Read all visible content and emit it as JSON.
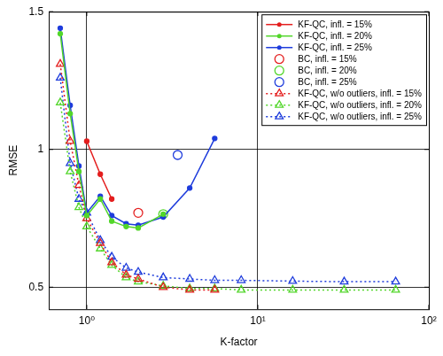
{
  "chart_data": {
    "type": "line",
    "x_label": "K-factor",
    "y_label": "RMSE",
    "log": "x",
    "grid": true,
    "legend": "upper right",
    "xlim": [
      0.6,
      100
    ],
    "ylim": [
      0.42,
      1.5
    ],
    "xticks": [
      {
        "value": 1,
        "label": "10⁰"
      },
      {
        "value": 10,
        "label": "10¹"
      },
      {
        "value": 100,
        "label": "10²"
      }
    ],
    "yticks": [
      0.5,
      1,
      1.5
    ],
    "series": [
      {
        "name": "KF-QC, infl. = 15%",
        "color": "#e41e1e",
        "marker": "dot",
        "line_style": "solid",
        "x": [
          1,
          1.2,
          1.4
        ],
        "values": [
          1.03,
          0.91,
          0.82
        ]
      },
      {
        "name": "KF-QC, infl. = 20%",
        "color": "#52d62a",
        "marker": "dot",
        "line_style": "solid",
        "x": [
          0.7,
          0.8,
          0.9,
          1,
          1.2,
          1.4,
          1.7,
          2,
          2.8
        ],
        "values": [
          1.42,
          1.13,
          0.92,
          0.76,
          0.82,
          0.74,
          0.72,
          0.715,
          0.765
        ]
      },
      {
        "name": "KF-QC, infl. = 25%",
        "color": "#1e3cdc",
        "marker": "dot",
        "line_style": "solid",
        "x": [
          0.7,
          0.8,
          0.9,
          1,
          1.2,
          1.4,
          1.7,
          2,
          2.8,
          4,
          5.6
        ],
        "values": [
          1.44,
          1.16,
          0.94,
          0.77,
          0.83,
          0.76,
          0.73,
          0.725,
          0.755,
          0.86,
          1.04
        ]
      },
      {
        "name": "BC, infl. = 15%",
        "color": "#e41e1e",
        "marker": "circle",
        "line_style": "none",
        "x": [
          2
        ],
        "values": [
          0.77
        ]
      },
      {
        "name": "BC, infl. = 20%",
        "color": "#52d62a",
        "marker": "circle",
        "line_style": "none",
        "x": [
          2.8
        ],
        "values": [
          0.765
        ]
      },
      {
        "name": "BC, infl. = 25%",
        "color": "#1e3cdc",
        "marker": "circle",
        "line_style": "none",
        "x": [
          3.4
        ],
        "values": [
          0.98
        ]
      },
      {
        "name": "KF-QC, w/o outliers, infl. = 15%",
        "color": "#e41e1e",
        "marker": "triangle",
        "line_style": "dotted",
        "x": [
          0.7,
          0.8,
          0.9,
          1,
          1.2,
          1.4,
          1.7,
          2,
          2.8,
          4,
          5.6
        ],
        "values": [
          1.31,
          1.03,
          0.87,
          0.75,
          0.66,
          0.59,
          0.545,
          0.53,
          0.5,
          0.49,
          0.49
        ]
      },
      {
        "name": "KF-QC, w/o outliers, infl. = 20%",
        "color": "#52d62a",
        "marker": "triangle",
        "line_style": "dotted",
        "x": [
          0.7,
          0.8,
          0.9,
          1,
          1.2,
          1.4,
          1.7,
          2,
          2.8,
          4,
          5.6,
          8,
          16,
          32,
          64
        ],
        "values": [
          1.17,
          0.92,
          0.79,
          0.72,
          0.64,
          0.58,
          0.535,
          0.52,
          0.505,
          0.495,
          0.495,
          0.49,
          0.49,
          0.49,
          0.49
        ]
      },
      {
        "name": "KF-QC, w/o outliers, infl. = 25%",
        "color": "#1e3cdc",
        "marker": "triangle",
        "line_style": "dotted",
        "x": [
          0.7,
          0.8,
          0.9,
          1,
          1.2,
          1.4,
          1.7,
          2,
          2.8,
          4,
          5.6,
          8,
          16,
          32,
          64
        ],
        "values": [
          1.26,
          0.95,
          0.82,
          0.77,
          0.67,
          0.61,
          0.57,
          0.555,
          0.535,
          0.53,
          0.525,
          0.525,
          0.522,
          0.52,
          0.52
        ]
      }
    ]
  }
}
